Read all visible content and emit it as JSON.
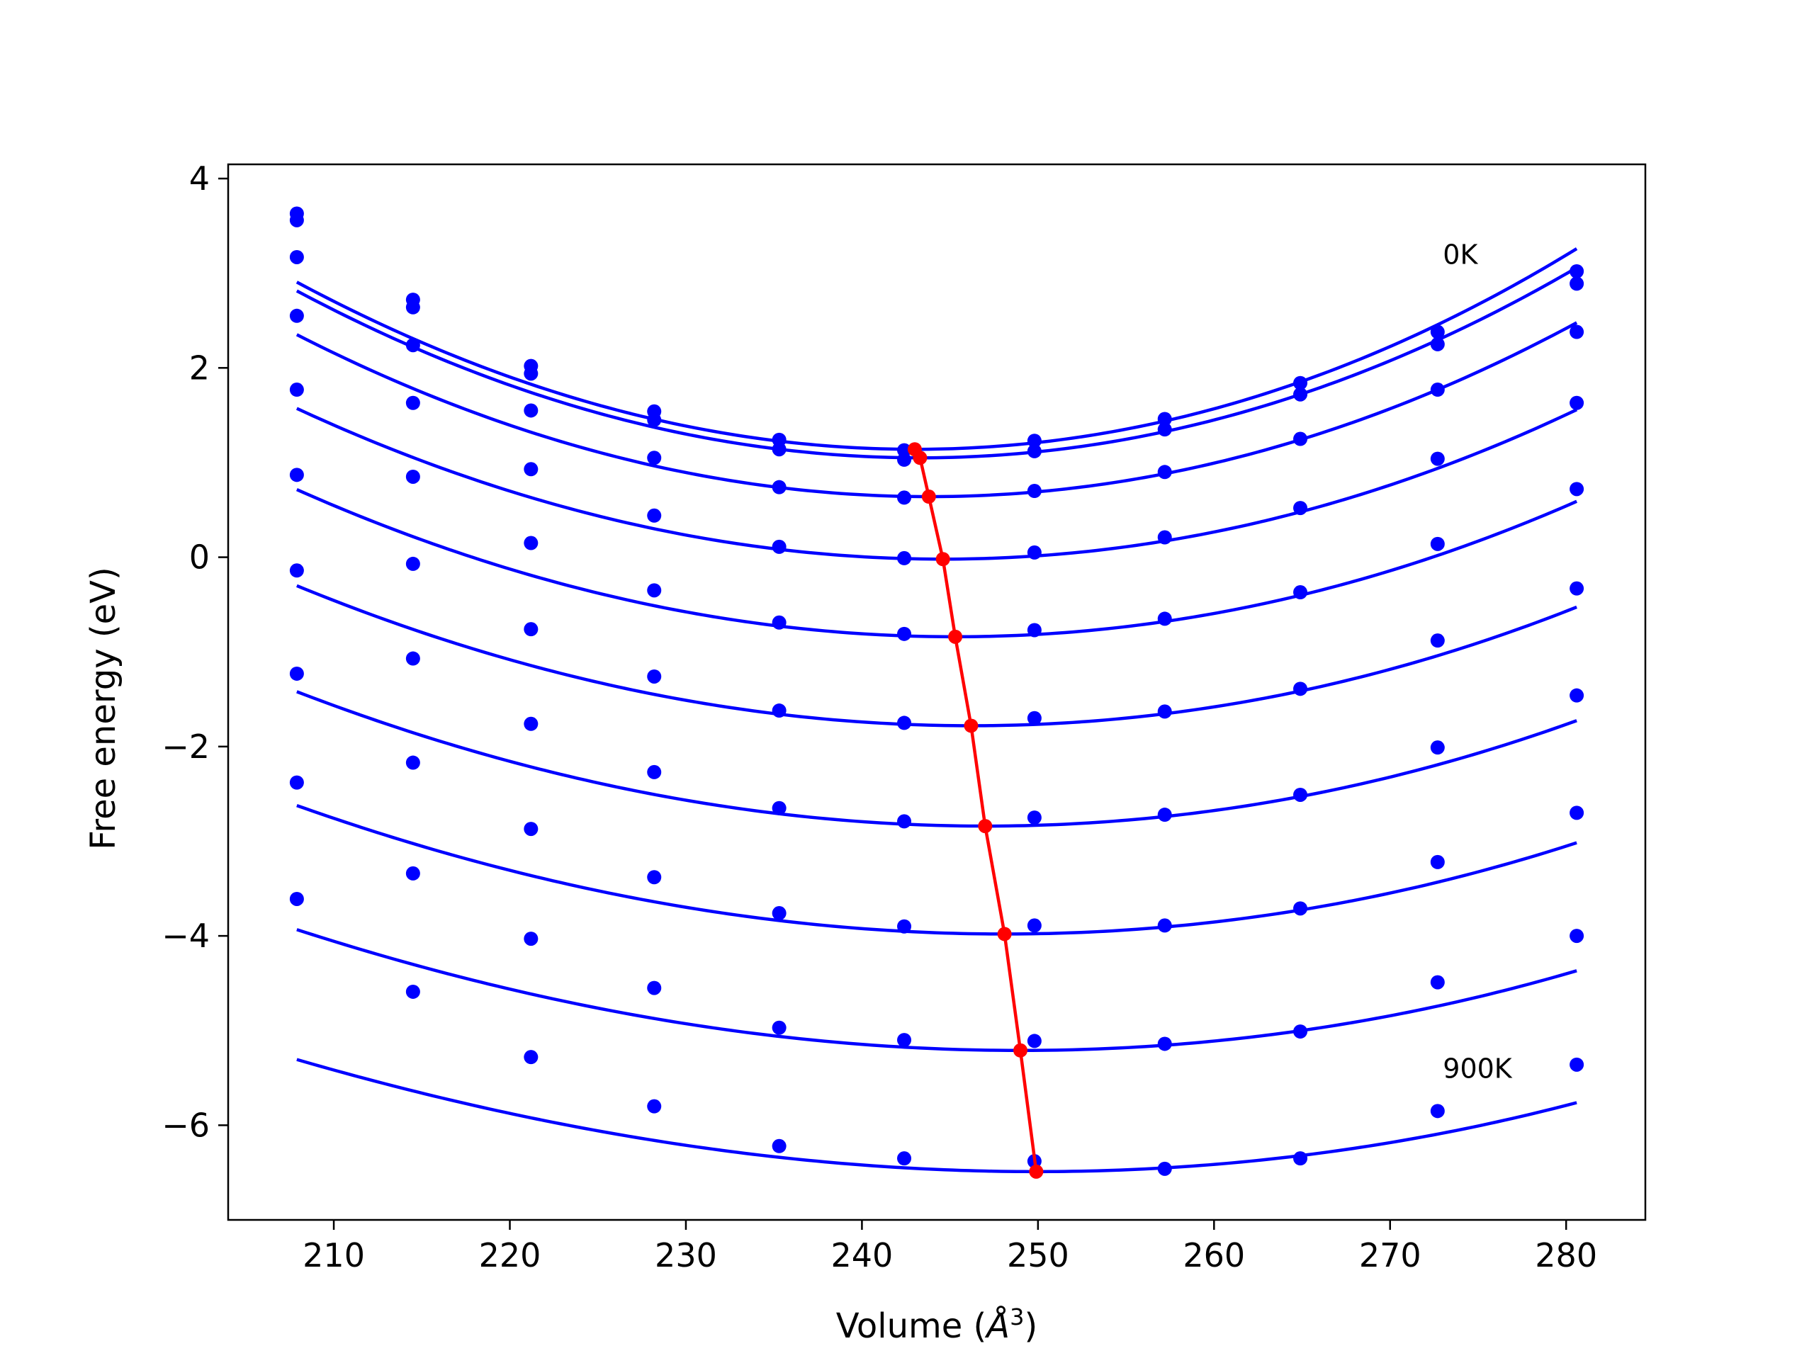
{
  "chart_data": {
    "type": "line",
    "xlabel_main": "Volume (",
    "xlabel_unit": "Å",
    "xlabel_exp": "3",
    "xlabel_close": ")",
    "ylabel": "Free energy (eV)",
    "xlim": [
      204,
      284.5
    ],
    "ylim": [
      -7.0,
      4.15
    ],
    "xticks": [
      210,
      220,
      230,
      240,
      250,
      260,
      270,
      280
    ],
    "xtick_labels": [
      "210",
      "220",
      "230",
      "240",
      "250",
      "260",
      "270",
      "280"
    ],
    "yticks": [
      4,
      2,
      0,
      -2,
      -4,
      -6
    ],
    "ytick_labels": [
      "4",
      "2",
      "0",
      "−2",
      "−4",
      "−6"
    ],
    "annotations": [
      {
        "text": "0K",
        "x": 273,
        "y": 3.1
      },
      {
        "text": "900K",
        "x": 273,
        "y": -5.5
      }
    ],
    "fit_color": "#0000ff",
    "minima_color": "#ff0000",
    "volumes": [
      207.9,
      214.5,
      221.2,
      228.2,
      235.3,
      242.4,
      249.8,
      257.2,
      264.9,
      272.7,
      280.6
    ],
    "series": [
      {
        "points": [
          3.63,
          2.72,
          2.02,
          1.54,
          1.24,
          1.13,
          1.23,
          1.46,
          1.84,
          2.38,
          3.02
        ],
        "fit": {
          "v0": 243.0,
          "e0": 1.14,
          "a": 0.001465,
          "b": 9e-07
        }
      },
      {
        "points": [
          3.56,
          2.64,
          1.94,
          1.45,
          1.14,
          1.03,
          1.12,
          1.35,
          1.72,
          2.25,
          2.89
        ],
        "fit": {
          "v0": 243.3,
          "e0": 1.05,
          "a": 0.001425,
          "b": 5e-07
        }
      },
      {
        "points": [
          3.17,
          2.24,
          1.55,
          1.05,
          0.74,
          0.63,
          0.7,
          0.9,
          1.25,
          1.77,
          2.38
        ],
        "fit": {
          "v0": 243.8,
          "e0": 0.64,
          "a": 0.001342,
          "b": 4e-07
        }
      },
      {
        "points": [
          2.55,
          1.63,
          0.93,
          0.44,
          0.11,
          -0.01,
          0.05,
          0.21,
          0.52,
          1.04,
          1.63
        ],
        "fit": {
          "v0": 244.6,
          "e0": -0.02,
          "a": 0.0012,
          "b": 5e-07
        }
      },
      {
        "points": [
          1.77,
          0.85,
          0.15,
          -0.35,
          -0.69,
          -0.81,
          -0.77,
          -0.65,
          -0.37,
          0.14,
          0.72
        ],
        "fit": {
          "v0": 245.3,
          "e0": -0.84,
          "a": 0.00113,
          "b": 5e-07
        }
      },
      {
        "points": [
          0.87,
          -0.07,
          -0.76,
          -1.26,
          -1.62,
          -1.75,
          -1.7,
          -1.63,
          -1.39,
          -0.88,
          -0.33
        ],
        "fit": {
          "v0": 246.2,
          "e0": -1.78,
          "a": 0.001035,
          "b": 7e-07
        }
      },
      {
        "points": [
          -0.14,
          -1.07,
          -1.76,
          -2.27,
          -2.65,
          -2.79,
          -2.75,
          -2.72,
          -2.51,
          -2.01,
          -1.46
        ],
        "fit": {
          "v0": 247.0,
          "e0": -2.84,
          "a": 0.00096,
          "b": 8e-07
        }
      },
      {
        "points": [
          -1.23,
          -2.17,
          -2.87,
          -3.38,
          -3.76,
          -3.9,
          -3.89,
          -3.89,
          -3.71,
          -3.22,
          -2.7
        ],
        "fit": {
          "v0": 248.1,
          "e0": -3.98,
          "a": 0.00088,
          "b": 1e-06
        }
      },
      {
        "points": [
          -2.38,
          -3.34,
          -4.03,
          -4.55,
          -4.97,
          -5.1,
          -5.11,
          -5.14,
          -5.01,
          -4.49,
          -4.0
        ],
        "fit": {
          "v0": 249.0,
          "e0": -5.21,
          "a": 0.000805,
          "b": 1.2e-06
        }
      },
      {
        "points": [
          -3.61,
          -4.59,
          -5.28,
          -5.8,
          -6.22,
          -6.35,
          -6.38,
          -6.46,
          -6.35,
          -5.85,
          -5.36
        ],
        "fit": {
          "v0": 249.9,
          "e0": -6.49,
          "a": 0.00073,
          "b": 1.4e-06
        }
      }
    ],
    "minima": {
      "x": [
        243.0,
        243.3,
        243.8,
        244.6,
        245.3,
        246.2,
        247.0,
        248.1,
        249.0,
        249.9
      ],
      "y": [
        1.14,
        1.05,
        0.64,
        -0.02,
        -0.84,
        -1.78,
        -2.84,
        -3.98,
        -5.21,
        -6.49
      ]
    }
  }
}
